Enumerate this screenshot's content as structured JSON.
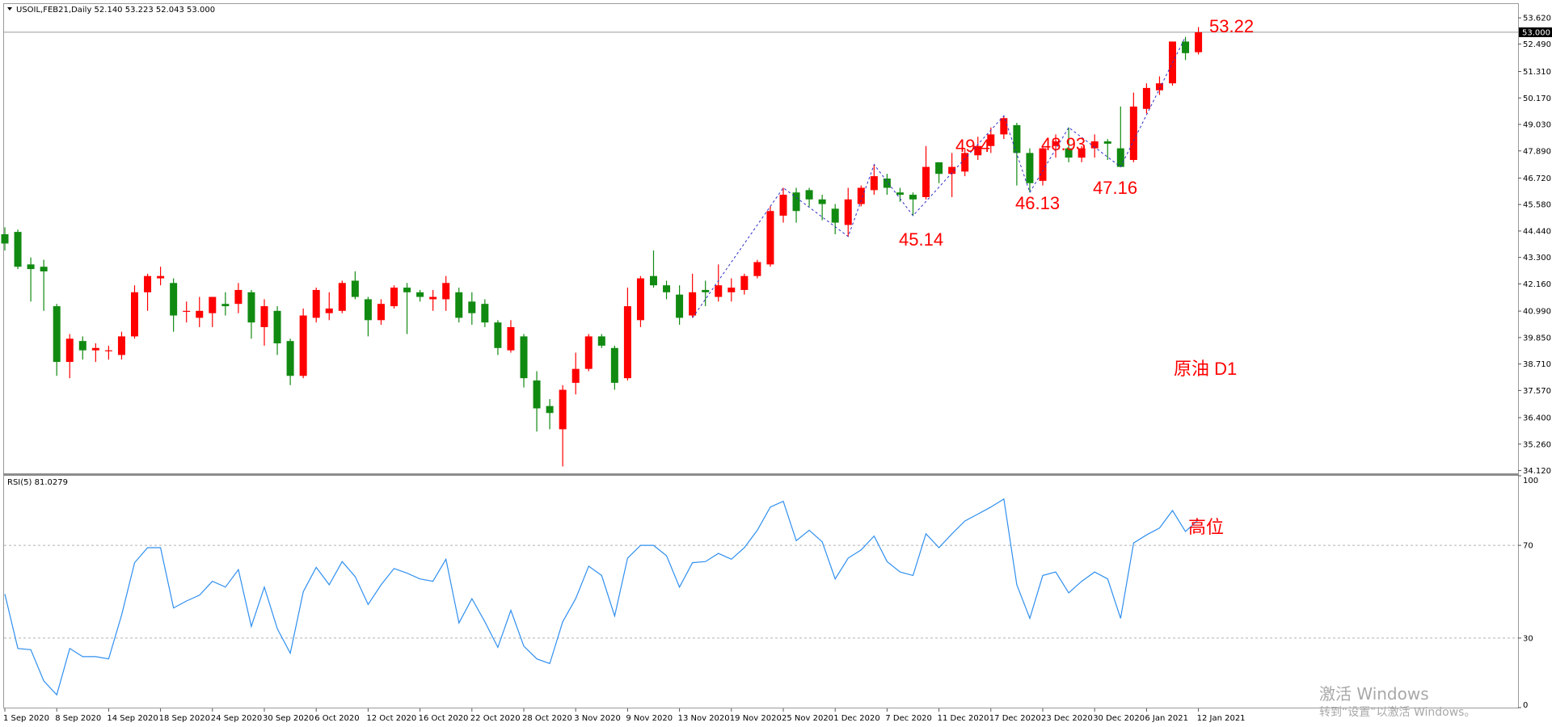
{
  "chart_data": [
    {
      "type": "candlestick",
      "title": "USOIL,FEB21,Daily  52.140 53.223 52.043 53.000",
      "categories": [
        "1 Sep 2020",
        null,
        null,
        null,
        "8 Sep 2020",
        null,
        null,
        null,
        "14 Sep 2020",
        null,
        null,
        null,
        "18 Sep 2020",
        null,
        null,
        null,
        "24 Sep 2020",
        null,
        null,
        null,
        "30 Sep 2020",
        null,
        null,
        null,
        "6 Oct 2020",
        null,
        null,
        null,
        "12 Oct 2020",
        null,
        null,
        null,
        "16 Oct 2020",
        null,
        null,
        null,
        "22 Oct 2020",
        null,
        null,
        null,
        "28 Oct 2020",
        null,
        null,
        null,
        "3 Nov 2020",
        null,
        null,
        null,
        "9 Nov 2020",
        null,
        null,
        null,
        "13 Nov 2020",
        null,
        null,
        null,
        "19 Nov 2020",
        null,
        null,
        null,
        "25 Nov 2020",
        null,
        null,
        null,
        "1 Dec 2020",
        null,
        null,
        null,
        "7 Dec 2020",
        null,
        null,
        null,
        "11 Dec 2020",
        null,
        null,
        null,
        "17 Dec 2020",
        null,
        null,
        null,
        "23 Dec 2020",
        null,
        null,
        null,
        "30 Dec 2020",
        null,
        null,
        null,
        "6 Jan 2021",
        null,
        null,
        null,
        "12 Jan 2021"
      ],
      "open": [
        44.3,
        44.4,
        43.0,
        42.9,
        41.2,
        38.8,
        39.7,
        39.3,
        39.3,
        39.1,
        39.9,
        41.8,
        42.4,
        42.2,
        41.0,
        40.7,
        40.9,
        41.3,
        41.3,
        41.8,
        40.3,
        41.0,
        39.7,
        38.2,
        40.7,
        40.9,
        41.0,
        42.3,
        41.5,
        40.6,
        41.2,
        42.0,
        41.8,
        41.5,
        41.5,
        41.8,
        41.4,
        41.3,
        40.5,
        39.3,
        39.9,
        38.0,
        36.9,
        35.9,
        37.9,
        38.5,
        39.9,
        39.4,
        38.1,
        40.6,
        42.5,
        42.1,
        41.7,
        40.8,
        41.9,
        41.6,
        41.8,
        41.9,
        42.5,
        43.0,
        45.1,
        46.1,
        46.2,
        45.8,
        45.4,
        44.7,
        45.6,
        46.2,
        46.7,
        46.1,
        46.0,
        45.9,
        47.4,
        46.9,
        47.0,
        47.7,
        48.1,
        48.6,
        49.0,
        47.8,
        46.6,
        48.1,
        48.0,
        47.6,
        48.0,
        48.3,
        48.0,
        47.5,
        49.7,
        50.5,
        50.8,
        52.6,
        52.14
      ],
      "high": [
        44.6,
        44.5,
        43.3,
        43.2,
        41.3,
        40.0,
        39.9,
        39.6,
        39.5,
        40.1,
        42.1,
        42.6,
        42.9,
        42.4,
        41.4,
        41.6,
        41.6,
        41.8,
        42.2,
        41.9,
        41.5,
        41.2,
        39.8,
        41.1,
        42.0,
        41.8,
        42.3,
        42.7,
        41.6,
        41.5,
        42.1,
        42.2,
        41.9,
        41.9,
        42.5,
        42.0,
        41.8,
        41.5,
        40.6,
        40.6,
        40.0,
        38.4,
        37.2,
        37.8,
        39.2,
        40.0,
        40.0,
        39.5,
        42.0,
        42.5,
        43.6,
        42.3,
        42.1,
        42.6,
        42.3,
        43.0,
        42.4,
        42.6,
        43.2,
        45.5,
        46.3,
        46.3,
        46.3,
        46.0,
        45.6,
        46.3,
        46.4,
        47.3,
        46.9,
        46.3,
        46.1,
        48.1,
        47.4,
        47.8,
        48.0,
        48.5,
        48.9,
        49.4,
        49.1,
        48.0,
        48.1,
        48.6,
        48.9,
        48.1,
        48.6,
        48.4,
        49.8,
        50.4,
        50.8,
        51.1,
        52.6,
        52.8,
        53.223
      ],
      "low": [
        43.6,
        42.8,
        41.4,
        41.0,
        38.2,
        38.1,
        38.9,
        38.8,
        38.9,
        38.9,
        39.8,
        41.0,
        42.1,
        40.1,
        40.5,
        40.3,
        40.3,
        40.8,
        40.9,
        39.8,
        39.5,
        39.1,
        37.8,
        38.1,
        40.5,
        40.6,
        40.9,
        41.5,
        39.9,
        40.4,
        41.1,
        40.0,
        41.4,
        41.0,
        41.0,
        40.5,
        40.4,
        40.3,
        39.1,
        39.2,
        37.7,
        35.8,
        35.9,
        34.3,
        37.4,
        38.4,
        39.4,
        37.6,
        38.0,
        40.3,
        42.0,
        41.5,
        40.4,
        40.7,
        41.2,
        41.4,
        41.4,
        41.7,
        42.4,
        42.9,
        44.8,
        44.8,
        45.5,
        44.9,
        44.3,
        44.2,
        45.5,
        46.0,
        46.0,
        45.7,
        45.1,
        45.8,
        46.5,
        45.9,
        46.8,
        47.5,
        47.8,
        48.4,
        46.4,
        46.1,
        46.4,
        47.6,
        47.4,
        47.4,
        47.6,
        47.5,
        47.2,
        47.4,
        49.5,
        50.3,
        50.7,
        51.8,
        52.043
      ],
      "close": [
        43.9,
        42.9,
        42.8,
        42.7,
        38.8,
        39.8,
        39.3,
        39.4,
        39.3,
        39.9,
        41.8,
        42.5,
        42.5,
        40.8,
        41.0,
        41.0,
        41.6,
        41.2,
        41.9,
        40.5,
        41.2,
        39.6,
        38.2,
        40.8,
        41.9,
        41.1,
        42.2,
        41.6,
        40.6,
        41.3,
        42.0,
        41.8,
        41.6,
        41.6,
        42.2,
        40.7,
        40.9,
        40.5,
        39.4,
        40.3,
        38.1,
        36.8,
        36.6,
        37.6,
        38.5,
        39.9,
        39.5,
        37.9,
        41.2,
        42.4,
        42.1,
        41.8,
        40.7,
        41.8,
        41.8,
        42.1,
        42.0,
        42.5,
        43.1,
        45.3,
        46.0,
        45.3,
        45.8,
        45.6,
        44.8,
        45.8,
        46.3,
        46.8,
        46.3,
        46.0,
        45.8,
        47.2,
        46.9,
        47.2,
        47.8,
        48.1,
        48.6,
        49.3,
        47.8,
        46.5,
        48.0,
        48.3,
        47.6,
        48.0,
        48.3,
        48.2,
        47.2,
        49.8,
        50.6,
        50.8,
        52.6,
        52.1,
        53.0
      ],
      "up_color": "#ff0000",
      "down_color": "#118a11",
      "zigzag": {
        "color": "#3030c8",
        "x": [
          53,
          60,
          65,
          67,
          70,
          77,
          79,
          82,
          86,
          91
        ],
        "values": [
          40.7,
          46.3,
          44.2,
          47.3,
          45.1,
          49.4,
          46.1,
          48.9,
          47.2,
          52.8
        ]
      },
      "current_price": {
        "value": 53.0,
        "label": "53.000"
      },
      "ylim": [
        34.0,
        54.25
      ],
      "yticks": [
        {
          "value": 53.62,
          "label": "53.620"
        },
        {
          "value": 52.49,
          "label": "52.490"
        },
        {
          "value": 51.31,
          "label": "51.310"
        },
        {
          "value": 50.17,
          "label": "50.170"
        },
        {
          "value": 49.03,
          "label": "49.030"
        },
        {
          "value": 47.89,
          "label": "47.890"
        },
        {
          "value": 46.72,
          "label": "46.720"
        },
        {
          "value": 45.58,
          "label": "45.580"
        },
        {
          "value": 44.44,
          "label": "44.440"
        },
        {
          "value": 43.3,
          "label": "43.300"
        },
        {
          "value": 42.16,
          "label": "42.160"
        },
        {
          "value": 40.99,
          "label": "40.990"
        },
        {
          "value": 39.85,
          "label": "39.850"
        },
        {
          "value": 38.71,
          "label": "38.710"
        },
        {
          "value": 37.57,
          "label": "37.570"
        },
        {
          "value": 36.4,
          "label": "36.400"
        },
        {
          "value": 35.26,
          "label": "35.260"
        },
        {
          "value": 34.12,
          "label": "34.120"
        }
      ],
      "annotations": [
        "53.22",
        "49.4",
        "48.93",
        "46.13",
        "47.16",
        "45.14",
        "原油 D1"
      ]
    },
    {
      "type": "line",
      "title": "RSI(5) 81.0279",
      "color": "#2f8fef",
      "values": [
        49,
        25.5,
        25,
        11.5,
        5.5,
        25.5,
        22,
        22,
        21,
        40,
        62.5,
        69,
        69,
        43,
        46,
        48.5,
        54.5,
        52,
        59.5,
        35,
        52,
        34,
        23.5,
        50,
        60.5,
        53,
        63,
        56.5,
        44.5,
        53,
        60,
        58,
        55.5,
        54.5,
        64,
        36.5,
        47,
        37,
        26,
        42,
        26.5,
        21,
        19,
        37,
        47,
        61,
        57,
        39.5,
        64.5,
        70,
        70,
        65.5,
        52,
        62.5,
        63,
        66.5,
        64,
        69,
        76.5,
        86.5,
        89,
        72,
        76.5,
        71.5,
        55.5,
        64.5,
        68,
        74,
        63,
        58.5,
        57,
        75,
        69,
        75,
        80.5,
        83.5,
        86.5,
        90,
        53,
        38.5,
        57,
        58.5,
        49.5,
        54.5,
        58.5,
        55.5,
        38.5,
        71,
        74.5,
        77.5,
        85,
        76,
        81.0279
      ],
      "ylim": [
        0,
        100
      ],
      "yticks": [
        100,
        70,
        30,
        0
      ],
      "levels": [
        70,
        30
      ],
      "annotations": [
        "高位"
      ]
    }
  ],
  "watermark": [
    "激活 Windows",
    "转到“设置”以激活 Windows。"
  ]
}
